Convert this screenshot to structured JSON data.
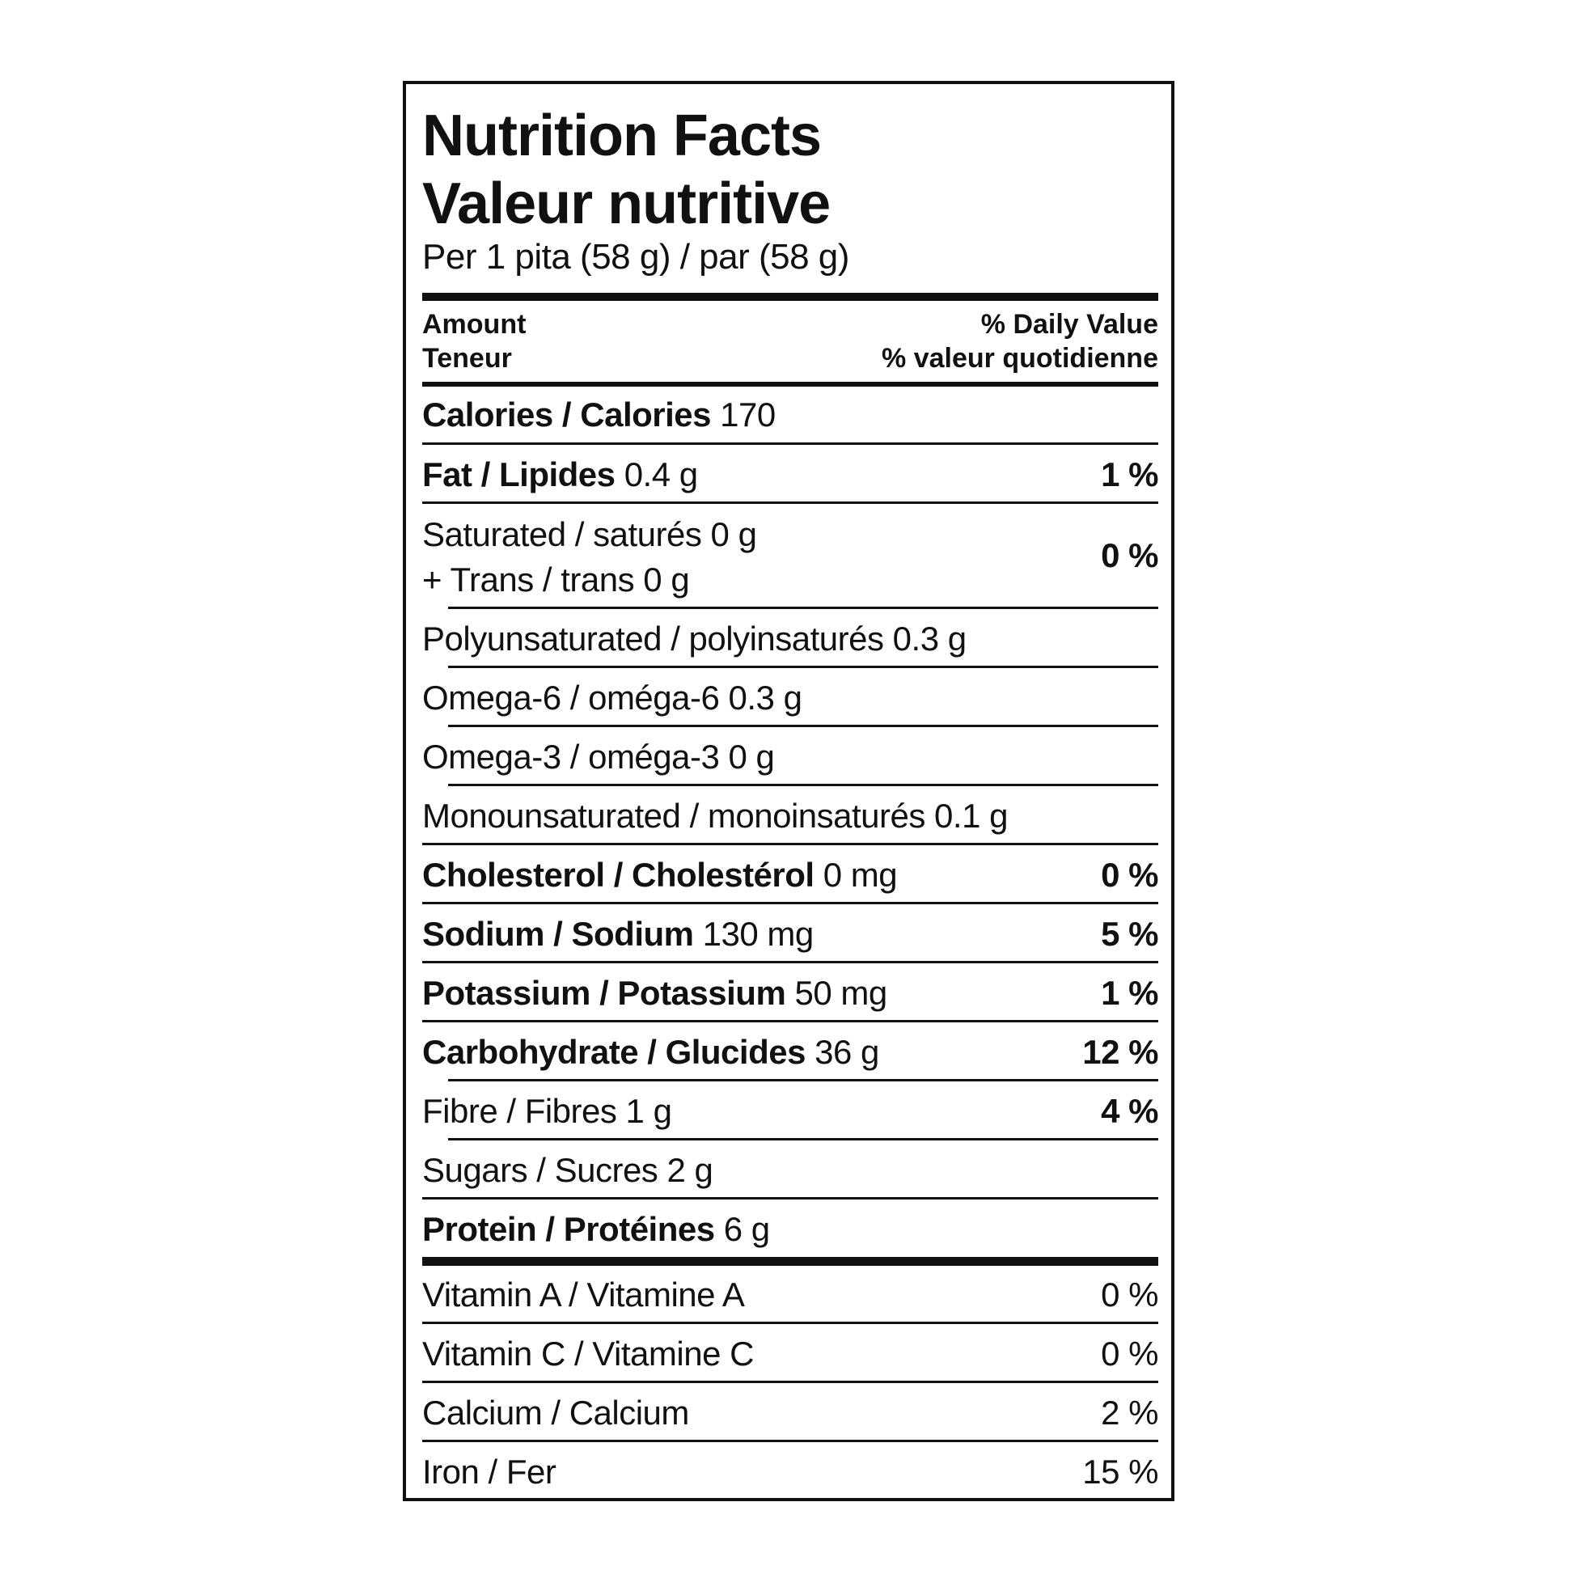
{
  "label": {
    "title_en": "Nutrition Facts",
    "title_fr": "Valeur nutritive",
    "serving": "Per 1 pita (58 g) / par (58 g)",
    "header": {
      "amount_en": "Amount",
      "amount_fr": "Teneur",
      "dv_en": "% Daily Value",
      "dv_fr": "% valeur quotidienne"
    },
    "calories": {
      "name": "Calories / Calories",
      "value": "170"
    },
    "fat": {
      "name": "Fat / Lipides",
      "amount": "0.4 g",
      "dv": "1 %"
    },
    "saturated": {
      "line1": "Saturated / saturés 0 g",
      "line2": "+ Trans / trans 0 g",
      "dv": "0 %"
    },
    "poly": {
      "text": "Polyunsaturated / polyinsaturés 0.3 g"
    },
    "omega6": {
      "text": "Omega-6 / oméga-6 0.3 g"
    },
    "omega3": {
      "text": "Omega-3 / oméga-3 0 g"
    },
    "mono": {
      "text": "Monounsaturated / monoinsaturés 0.1 g"
    },
    "cholesterol": {
      "name": "Cholesterol / Cholestérol",
      "amount": "0 mg",
      "dv": "0 %"
    },
    "sodium": {
      "name": "Sodium / Sodium",
      "amount": "130 mg",
      "dv": "5 %"
    },
    "potassium": {
      "name": "Potassium / Potassium",
      "amount": "50 mg",
      "dv": "1 %"
    },
    "carbohydrate": {
      "name": "Carbohydrate / Glucides",
      "amount": "36 g",
      "dv": "12 %"
    },
    "fibre": {
      "text": "Fibre / Fibres 1 g",
      "dv": "4 %"
    },
    "sugars": {
      "text": "Sugars / Sucres 2 g"
    },
    "protein": {
      "name": "Protein / Protéines",
      "amount": "6 g"
    },
    "vitamin_a": {
      "text": "Vitamin A / Vitamine A",
      "dv": "0 %"
    },
    "vitamin_c": {
      "text": "Vitamin C / Vitamine C",
      "dv": "0 %"
    },
    "calcium": {
      "text": "Calcium / Calcium",
      "dv": "2 %"
    },
    "iron": {
      "text": "Iron / Fer",
      "dv": "15 %"
    }
  }
}
